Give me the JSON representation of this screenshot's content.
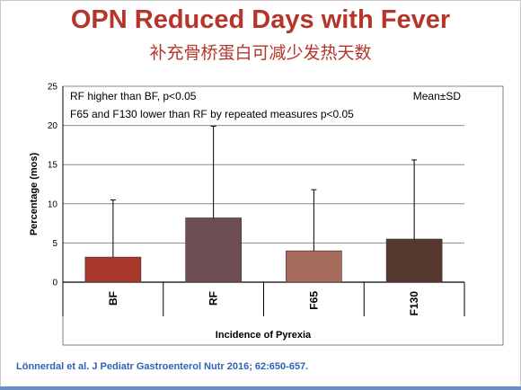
{
  "slide": {
    "title": "OPN Reduced Days with Fever",
    "subtitle": "补充骨桥蛋白可减少发热天数",
    "citation": "Lönnerdal et al. J Pediatr Gastroenterol Nutr 2016; 62:650-657.",
    "title_color": "#b5352b",
    "citation_color": "#2e63b8"
  },
  "chart_data": {
    "type": "bar",
    "categories": [
      "BF",
      "RF",
      "F65",
      "F130"
    ],
    "values": [
      3.2,
      8.2,
      4.0,
      5.5
    ],
    "error_upper": [
      10.5,
      19.9,
      11.8,
      15.6
    ],
    "colors": [
      "#a8372a",
      "#6e4e52",
      "#a66b5a",
      "#55392f"
    ],
    "xlabel": "Incidence of Pyrexia",
    "ylabel": "Percentage (mos)",
    "ylim": [
      0,
      25
    ],
    "yticks": [
      0,
      5,
      10,
      15,
      20,
      25
    ],
    "grid": true,
    "annotations": [
      "RF higher than BF, p<0.05",
      "F65 and F130 lower than RF by repeated measures p<0.05"
    ],
    "legend_note": "Mean±SD"
  }
}
